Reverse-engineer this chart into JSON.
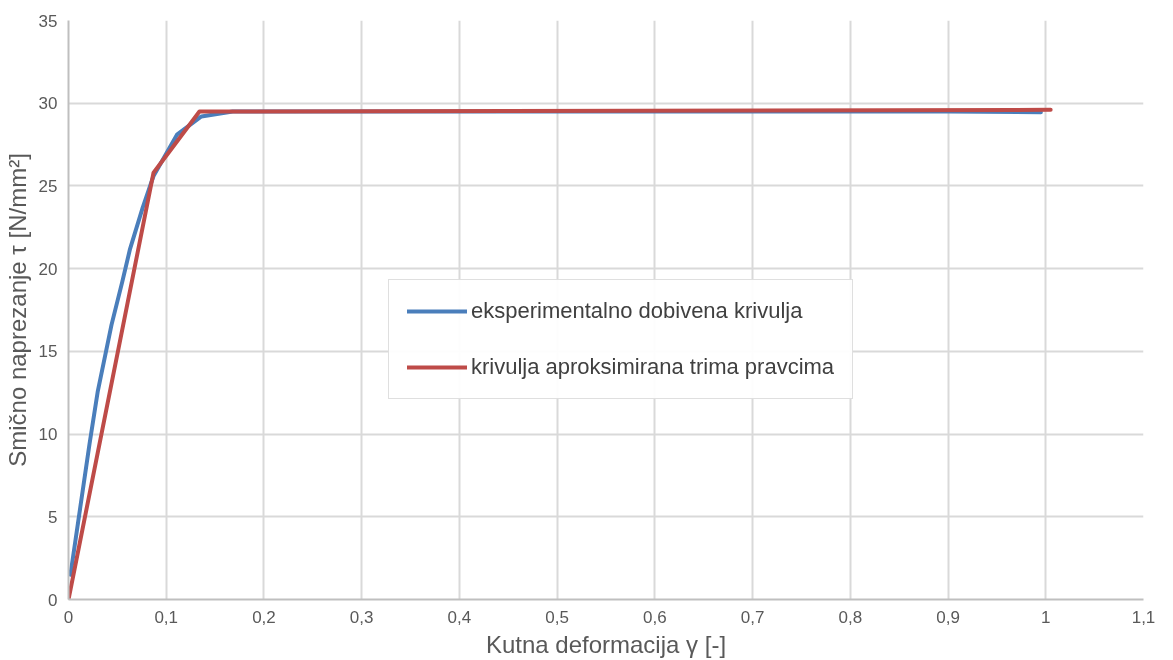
{
  "chart_data": {
    "type": "line",
    "xlabel": "Kutna deformacija γ [-]",
    "ylabel": "Smično naprezanje τ [N/mm²]",
    "xlim": [
      0,
      1.1
    ],
    "ylim": [
      0,
      35
    ],
    "xticks": [
      0,
      {
        "value": 0.1,
        "label": "0,1"
      },
      {
        "value": 0.2,
        "label": "0,2"
      },
      {
        "value": 0.3,
        "label": "0,3"
      },
      {
        "value": 0.4,
        "label": "0,4"
      },
      {
        "value": 0.5,
        "label": "0,5"
      },
      {
        "value": 0.6,
        "label": "0,6"
      },
      {
        "value": 0.7,
        "label": "0,7"
      },
      {
        "value": 0.8,
        "label": "0,8"
      },
      {
        "value": 0.9,
        "label": "0,9"
      },
      1,
      {
        "value": 1.1,
        "label": "1,1"
      }
    ],
    "yticks": [
      0,
      5,
      10,
      15,
      20,
      25,
      30,
      35
    ],
    "grid": true,
    "legend": "right",
    "marker": "none",
    "line_style": "solid",
    "series": [
      {
        "name": "eksperimentalno dobivena krivulja",
        "color": "#4a7ebb",
        "x": [
          0.002,
          0.0215,
          0.03,
          0.044,
          0.055,
          0.063,
          0.076,
          0.087,
          0.111,
          0.136,
          0.168,
          0.3,
          0.5,
          0.7,
          0.9,
          0.995
        ],
        "values": [
          1.5,
          9.4,
          12.6,
          16.6,
          19.2,
          21.2,
          23.7,
          25.6,
          28.1,
          29.2,
          29.5,
          29.5,
          29.5,
          29.5,
          29.5,
          29.45
        ]
      },
      {
        "name": "krivulja aproksimirana trima pravcima",
        "color": "#be4b48",
        "x": [
          0,
          0.087,
          0.134,
          1.005
        ],
        "values": [
          0,
          25.8,
          29.5,
          29.6
        ]
      }
    ]
  }
}
